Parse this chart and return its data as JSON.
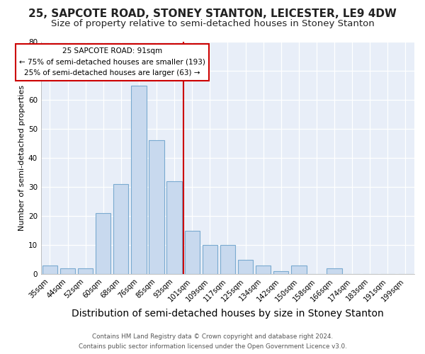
{
  "title": "25, SAPCOTE ROAD, STONEY STANTON, LEICESTER, LE9 4DW",
  "subtitle": "Size of property relative to semi-detached houses in Stoney Stanton",
  "xlabel": "Distribution of semi-detached houses by size in Stoney Stanton",
  "ylabel": "Number of semi-detached properties",
  "categories": [
    "35sqm",
    "44sqm",
    "52sqm",
    "60sqm",
    "68sqm",
    "76sqm",
    "85sqm",
    "93sqm",
    "101sqm",
    "109sqm",
    "117sqm",
    "125sqm",
    "134sqm",
    "142sqm",
    "150sqm",
    "158sqm",
    "166sqm",
    "174sqm",
    "183sqm",
    "191sqm",
    "199sqm"
  ],
  "values": [
    3,
    2,
    2,
    21,
    31,
    65,
    46,
    32,
    15,
    10,
    10,
    5,
    3,
    1,
    3,
    0,
    2,
    0,
    0,
    0,
    0
  ],
  "bar_color": "#c8d9ee",
  "bar_edge_color": "#7aaad0",
  "property_line_x": 7.5,
  "property_label": "25 SAPCOTE ROAD: 91sqm",
  "annotation_smaller": "← 75% of semi-detached houses are smaller (193)",
  "annotation_larger": "25% of semi-detached houses are larger (63) →",
  "vline_color": "#cc0000",
  "annotation_box_facecolor": "#ffffff",
  "annotation_box_edgecolor": "#cc0000",
  "background_color": "#ffffff",
  "plot_bg_color": "#e8eef8",
  "grid_color": "#ffffff",
  "footer_line1": "Contains HM Land Registry data © Crown copyright and database right 2024.",
  "footer_line2": "Contains public sector information licensed under the Open Government Licence v3.0.",
  "ylim": [
    0,
    80
  ],
  "title_fontsize": 11,
  "subtitle_fontsize": 9.5,
  "xlabel_fontsize": 10,
  "ylabel_fontsize": 8
}
